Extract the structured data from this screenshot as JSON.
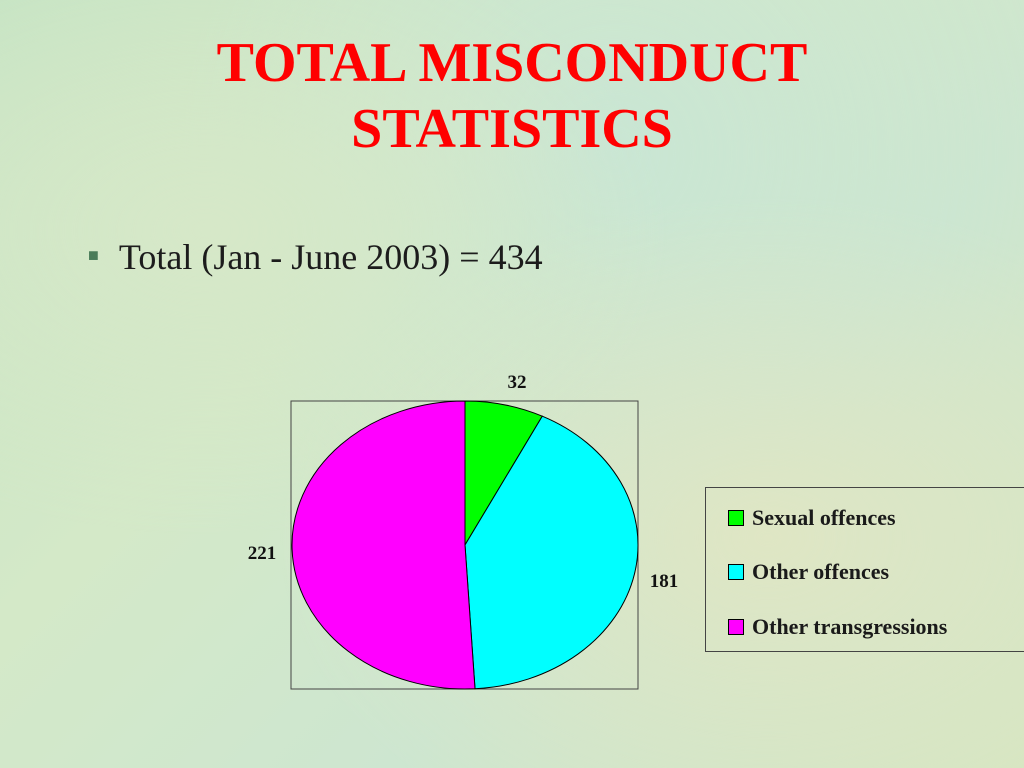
{
  "slide": {
    "title_line1": "TOTAL MISCONDUCT",
    "title_line2": "STATISTICS",
    "bullet_text": "Total (Jan - June 2003) = 434"
  },
  "chart_data": {
    "type": "pie",
    "categories": [
      "Sexual offences",
      "Other offences",
      "Other transgressions"
    ],
    "values": [
      32,
      181,
      221
    ],
    "colors": [
      "#00ff00",
      "#00ffff",
      "#ff00ff"
    ],
    "data_labels": [
      "32",
      "181",
      "221"
    ],
    "legend_placement": "right"
  }
}
